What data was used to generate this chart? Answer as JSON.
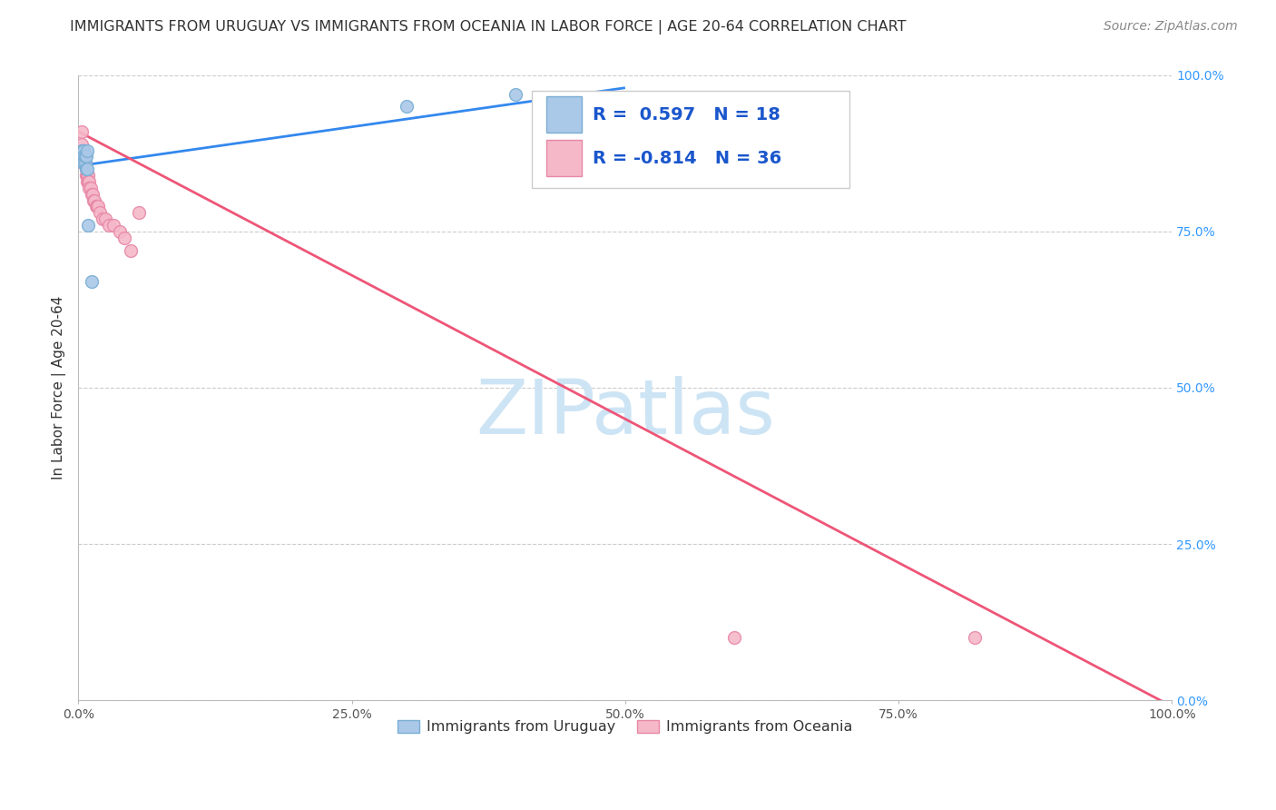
{
  "title": "IMMIGRANTS FROM URUGUAY VS IMMIGRANTS FROM OCEANIA IN LABOR FORCE | AGE 20-64 CORRELATION CHART",
  "source": "Source: ZipAtlas.com",
  "ylabel": "In Labor Force | Age 20-64",
  "xlim": [
    0,
    1.0
  ],
  "ylim": [
    0,
    1.0
  ],
  "xtick_labels": [
    "0.0%",
    "25.0%",
    "50.0%",
    "75.0%",
    "100.0%"
  ],
  "xtick_vals": [
    0.0,
    0.25,
    0.5,
    0.75,
    1.0
  ],
  "ytick_labels_right": [
    "100.0%",
    "75.0%",
    "50.0%",
    "25.0%",
    "0.0%"
  ],
  "ytick_vals": [
    1.0,
    0.75,
    0.5,
    0.25,
    0.0
  ],
  "grid_color": "#cccccc",
  "background_color": "#ffffff",
  "watermark_text": "ZIPatlas",
  "watermark_color": "#cde4f5",
  "uruguay_color": "#aac8e8",
  "oceania_color": "#f5b8c8",
  "uruguay_edge": "#7aaed4",
  "oceania_edge": "#e888a8",
  "R_uruguay": 0.597,
  "N_uruguay": 18,
  "R_oceania": -0.814,
  "N_oceania": 36,
  "legend_label_uruguay": "Immigrants from Uruguay",
  "legend_label_oceania": "Immigrants from Oceania",
  "uruguay_x": [
    0.003,
    0.003,
    0.004,
    0.004,
    0.004,
    0.005,
    0.005,
    0.005,
    0.006,
    0.006,
    0.007,
    0.007,
    0.008,
    0.008,
    0.009,
    0.012,
    0.3,
    0.4
  ],
  "uruguay_y": [
    0.87,
    0.88,
    0.88,
    0.86,
    0.87,
    0.88,
    0.87,
    0.86,
    0.86,
    0.87,
    0.85,
    0.87,
    0.88,
    0.85,
    0.76,
    0.67,
    0.95,
    0.97
  ],
  "oceania_x": [
    0.003,
    0.003,
    0.004,
    0.004,
    0.005,
    0.005,
    0.005,
    0.006,
    0.006,
    0.007,
    0.007,
    0.008,
    0.008,
    0.009,
    0.009,
    0.01,
    0.01,
    0.011,
    0.012,
    0.013,
    0.014,
    0.015,
    0.016,
    0.017,
    0.018,
    0.02,
    0.022,
    0.025,
    0.028,
    0.032,
    0.038,
    0.042,
    0.048,
    0.055,
    0.6,
    0.82
  ],
  "oceania_y": [
    0.91,
    0.89,
    0.88,
    0.87,
    0.88,
    0.87,
    0.86,
    0.87,
    0.86,
    0.85,
    0.84,
    0.84,
    0.83,
    0.84,
    0.83,
    0.83,
    0.82,
    0.82,
    0.81,
    0.81,
    0.8,
    0.8,
    0.79,
    0.79,
    0.79,
    0.78,
    0.77,
    0.77,
    0.76,
    0.76,
    0.75,
    0.74,
    0.72,
    0.78,
    0.1,
    0.1
  ],
  "trendline_blue_x0": 0.0,
  "trendline_blue_x1": 0.5,
  "trendline_blue_y0": 0.855,
  "trendline_blue_y1": 0.98,
  "trendline_pink_x0": 0.0,
  "trendline_pink_x1": 1.0,
  "trendline_pink_y0": 0.91,
  "trendline_pink_y1": -0.01,
  "title_fontsize": 11.5,
  "source_fontsize": 10,
  "axis_label_fontsize": 11,
  "tick_fontsize": 10,
  "legend_fontsize": 14,
  "watermark_fontsize": 60
}
